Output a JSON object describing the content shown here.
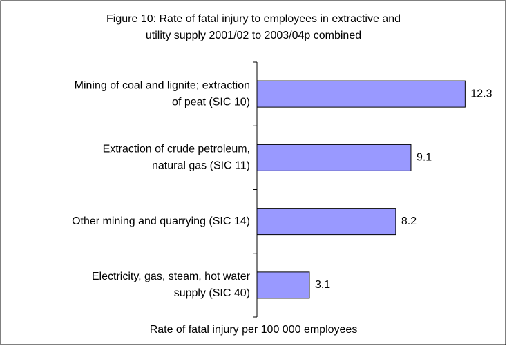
{
  "chart_data": {
    "type": "bar",
    "orientation": "horizontal",
    "title": [
      "Figure 10:  Rate of fatal injury to employees in extractive and",
      "utility supply 2001/02 to 2003/04p combined"
    ],
    "categories": [
      [
        "Mining of coal and lignite; extraction",
        "of peat (SIC 10)"
      ],
      [
        "Extraction of crude petroleum,",
        "natural gas (SIC 11)"
      ],
      [
        "Other mining and quarrying (SIC 14)"
      ],
      [
        "Electricity, gas, steam, hot water",
        "supply (SIC 40)"
      ]
    ],
    "values": [
      12.3,
      9.1,
      8.2,
      3.1
    ],
    "color": "#9999ff",
    "xlim": [
      0,
      14
    ],
    "xlabel": "Rate of fatal injury per 100 000 employees"
  }
}
